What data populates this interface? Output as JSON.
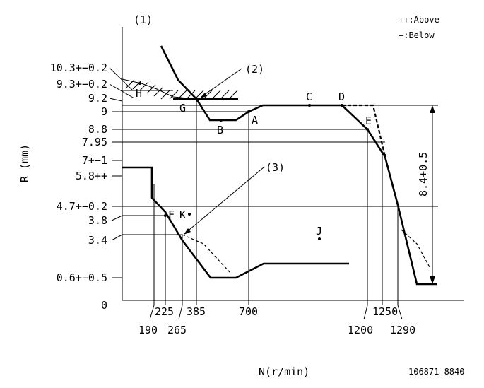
{
  "legend": {
    "above": "++:Above",
    "below": "—:Below"
  },
  "y_axis_label": "R (mm)",
  "x_axis_label": "N(r/min)",
  "figure_code": "106871-8840",
  "callouts": {
    "c1": "(1)",
    "c2": "(2)",
    "c3": "(3)"
  },
  "y_ticks": [
    "10.3+−0.2",
    "9.3+−0.2",
    "9.2",
    "9",
    "8.8",
    "7.95",
    "7+−1",
    "5.8++",
    "4.7+−0.2",
    "3.8",
    "3.4",
    "0.6+−0.5",
    "0"
  ],
  "x_ticks_top": [
    "225",
    "385",
    "700",
    "1250"
  ],
  "x_ticks_bottom": [
    "190",
    "265",
    "1200",
    "1290"
  ],
  "points": {
    "A": "A",
    "B": "B",
    "C": "C",
    "D": "D",
    "E": "E",
    "F": "F",
    "G": "G",
    "H": "H",
    "J": "J",
    "K": "K"
  },
  "dimension": "8.4+0.5"
}
